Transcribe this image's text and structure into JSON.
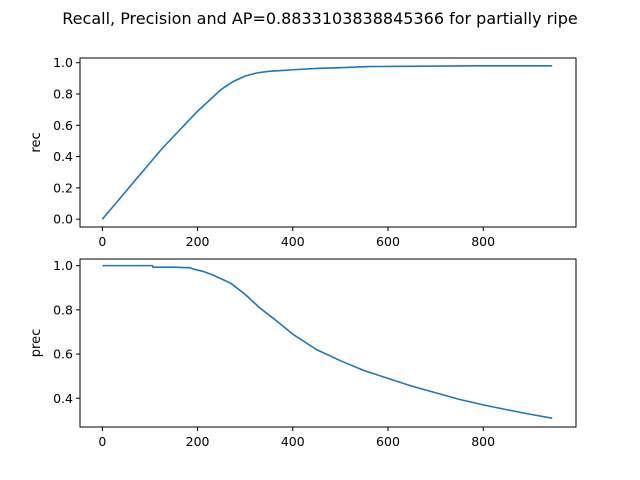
{
  "figure": {
    "title": "Recall, Precision and AP=0.8833103838845366 for partially ripe"
  },
  "chart_data": [
    {
      "type": "line",
      "ylabel": "rec",
      "xlabel": "",
      "xlim": [
        -47,
        995
      ],
      "ylim": [
        -0.05,
        1.03
      ],
      "xticks": [
        0,
        200,
        400,
        600,
        800
      ],
      "yticks": [
        0.0,
        0.2,
        0.4,
        0.6,
        0.8,
        1.0
      ],
      "xtick_labels": [
        "0",
        "200",
        "400",
        "600",
        "800"
      ],
      "ytick_labels": [
        "0.0",
        "0.2",
        "0.4",
        "0.6",
        "0.8",
        "1.0"
      ],
      "grid": false,
      "color": "#1f77b4",
      "series": [
        {
          "x": [
            0,
            25,
            50,
            75,
            100,
            125,
            150,
            175,
            200,
            225,
            250,
            275,
            300,
            325,
            350,
            375,
            400,
            450,
            500,
            560,
            600,
            680,
            750,
            800,
            850,
            900,
            945
          ],
          "y": [
            0.0,
            0.09,
            0.18,
            0.27,
            0.36,
            0.45,
            0.53,
            0.61,
            0.69,
            0.76,
            0.83,
            0.88,
            0.915,
            0.935,
            0.945,
            0.95,
            0.955,
            0.963,
            0.968,
            0.975,
            0.976,
            0.978,
            0.979,
            0.98,
            0.98,
            0.98,
            0.98
          ]
        }
      ]
    },
    {
      "type": "line",
      "ylabel": "prec",
      "xlabel": "",
      "xlim": [
        -47,
        995
      ],
      "ylim": [
        0.27,
        1.03
      ],
      "xticks": [
        0,
        200,
        400,
        600,
        800
      ],
      "yticks": [
        0.4,
        0.6,
        0.8,
        1.0
      ],
      "xtick_labels": [
        "0",
        "200",
        "400",
        "600",
        "800"
      ],
      "ytick_labels": [
        "0.4",
        "0.6",
        "0.8",
        "1.0"
      ],
      "grid": false,
      "color": "#1f77b4",
      "series": [
        {
          "x": [
            0,
            50,
            105,
            106,
            150,
            185,
            190,
            210,
            230,
            250,
            270,
            300,
            330,
            360,
            400,
            450,
            500,
            550,
            600,
            650,
            700,
            750,
            800,
            850,
            900,
            945
          ],
          "y": [
            1.0,
            1.0,
            1.0,
            0.993,
            0.993,
            0.99,
            0.985,
            0.975,
            0.96,
            0.94,
            0.92,
            0.87,
            0.81,
            0.76,
            0.69,
            0.62,
            0.57,
            0.525,
            0.49,
            0.455,
            0.425,
            0.395,
            0.37,
            0.348,
            0.327,
            0.31
          ]
        }
      ]
    }
  ]
}
